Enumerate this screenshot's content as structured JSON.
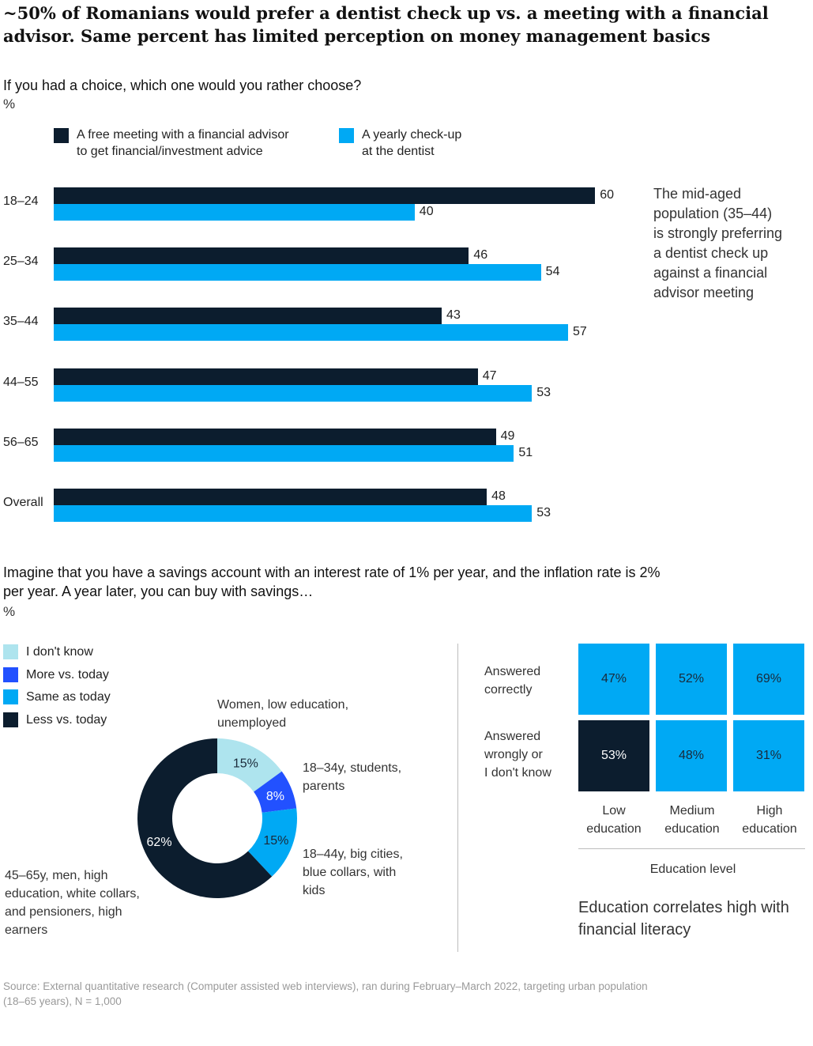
{
  "title": "~50% of Romanians would prefer a dentist check up vs. a meeting with a financial advisor. Same percent has limited perception on money management basics",
  "colors": {
    "dark": "#0c1d2e",
    "cyan": "#00a9f4",
    "light_cyan": "#aee4ee",
    "blue": "#2251ff"
  },
  "chart_data": [
    {
      "type": "bar",
      "orientation": "horizontal",
      "question": "If you had a choice, which one would you rather choose?",
      "unit": "%",
      "categories": [
        "18–24",
        "25–34",
        "35–44",
        "44–55",
        "56–65",
        "Overall"
      ],
      "series": [
        {
          "name": "A free meeting with a financial advisor to get financial/investment advice",
          "color": "#0c1d2e",
          "values": [
            60,
            46,
            43,
            47,
            49,
            48
          ]
        },
        {
          "name": "A yearly check-up at the dentist",
          "color": "#00a9f4",
          "values": [
            40,
            54,
            57,
            53,
            51,
            53
          ]
        }
      ],
      "annotation": "The mid-aged population (35–44) is strongly preferring a dentist check up against a financial advisor meeting"
    },
    {
      "type": "pie",
      "question": "Imagine that you have a savings account with an interest rate of 1% per year, and the inflation rate is 2% per year. A year later, you can buy with savings…",
      "unit": "%",
      "legend": [
        {
          "label": "I don't know",
          "color": "#aee4ee"
        },
        {
          "label": "More vs. today",
          "color": "#2251ff"
        },
        {
          "label": "Same as today",
          "color": "#00a9f4"
        },
        {
          "label": "Less vs. today",
          "color": "#0c1d2e"
        }
      ],
      "slices": [
        {
          "label": "I don't know",
          "value": 15,
          "display": "15%",
          "color": "#aee4ee",
          "annotation": "Women, low education, unemployed"
        },
        {
          "label": "More vs. today",
          "value": 8,
          "display": "8%",
          "color": "#2251ff",
          "annotation": "18–34y, students, parents"
        },
        {
          "label": "Same as today",
          "value": 15,
          "display": "15%",
          "color": "#00a9f4",
          "annotation": "18–44y, big cities, blue collars, with kids"
        },
        {
          "label": "Less vs. today",
          "value": 62,
          "display": "62%",
          "color": "#0c1d2e",
          "annotation": "45–65y, men, high education, white collars, and pensioners, high earners"
        }
      ]
    },
    {
      "type": "heatmap",
      "rows": [
        "Answered correctly",
        "Answered wrongly or I don't know"
      ],
      "columns": [
        "Low education",
        "Medium education",
        "High education"
      ],
      "values": [
        [
          47,
          52,
          69
        ],
        [
          53,
          48,
          31
        ]
      ],
      "display": [
        [
          "47%",
          "52%",
          "69%"
        ],
        [
          "53%",
          "48%",
          "31%"
        ]
      ],
      "xlabel": "Education level",
      "annotation": "Education correlates high with financial literacy"
    }
  ],
  "legend_bar": {
    "s1_line1": "A free meeting with a financial advisor",
    "s1_line2": "to get financial/investment advice",
    "s2_line1": "A yearly check-up",
    "s2_line2": "at the dentist"
  },
  "note_lines": [
    "The mid-aged",
    "population (35–44)",
    "is strongly preferring",
    "a dentist check up",
    "against a financial",
    "advisor meeting"
  ],
  "q2_lines": [
    "Imagine that you have a savings account with an interest rate of 1% per year, and the inflation rate is 2%",
    "per year. A year later, you can buy with savings…"
  ],
  "donut_annotations": {
    "a1": [
      "Women, low education,",
      "unemployed"
    ],
    "a2": [
      "18–34y, students,",
      "parents"
    ],
    "a3": [
      "18–44y, big cities,",
      "blue collars, with",
      "kids"
    ],
    "a4": [
      "45–65y, men, high",
      "education, white collars,",
      "and pensioners, high",
      "earners"
    ]
  },
  "heat_labels": {
    "row1": [
      "Answered",
      "correctly"
    ],
    "row2": [
      "Answered",
      "wrongly or",
      "I don't know"
    ],
    "col1": [
      "Low",
      "education"
    ],
    "col2": [
      "Medium",
      "education"
    ],
    "col3": [
      "High",
      "education"
    ]
  },
  "heat_note": [
    "Education correlates high with",
    "financial literacy"
  ],
  "footer": [
    "Source: External quantitative research (Computer assisted web interviews), ran during February–March 2022, targeting urban population",
    "(18–65 years), N = 1,000"
  ]
}
